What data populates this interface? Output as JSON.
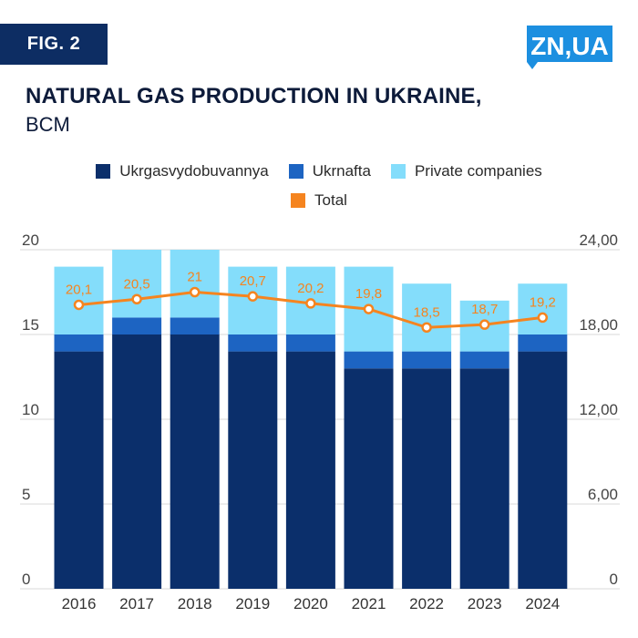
{
  "header": {
    "fig_label": "FIG. 2",
    "logo_text": "ZN,UA"
  },
  "colors": {
    "ukrgas": "#0b2f6b",
    "ukrnafta": "#1d64c2",
    "private": "#84ddfb",
    "total": "#f5841f",
    "logo_bg": "#ffffff",
    "logo_fill": "#1c8fe0"
  },
  "chart_data": {
    "type": "bar",
    "stacked": true,
    "title": "NATURAL GAS PRODUCTION IN UKRAINE,",
    "subtitle": "BCM",
    "categories": [
      "2016",
      "2017",
      "2018",
      "2019",
      "2020",
      "2021",
      "2022",
      "2023",
      "2024"
    ],
    "series": [
      {
        "name": "Ukrgasvydobuvannya",
        "values": [
          14,
          15,
          15,
          14,
          14,
          13,
          13,
          13,
          14
        ]
      },
      {
        "name": "Ukrnafta",
        "values": [
          1,
          1,
          1,
          1,
          1,
          1,
          1,
          1,
          1
        ]
      },
      {
        "name": "Private companies",
        "values": [
          4,
          4,
          4,
          4,
          4,
          5,
          4,
          3,
          3
        ]
      }
    ],
    "line_series": {
      "name": "Total",
      "values": [
        20.1,
        20.5,
        21,
        20.7,
        20.2,
        19.8,
        18.5,
        18.7,
        19.2
      ],
      "labels": [
        "20,1",
        "20,5",
        "21",
        "20,7",
        "20,2",
        "19,8",
        "18,5",
        "18,7",
        "19,2"
      ],
      "axis": "right"
    },
    "y_left": {
      "range": [
        0,
        20
      ],
      "ticks": [
        "0",
        "5",
        "10",
        "15",
        "20"
      ],
      "tick_values": [
        0,
        5,
        10,
        15,
        20
      ]
    },
    "y_right": {
      "range": [
        0,
        24
      ],
      "ticks": [
        "0",
        "6,00",
        "12,00",
        "18,00",
        "24,00"
      ],
      "tick_values": [
        0,
        6,
        12,
        18,
        24
      ]
    },
    "grid": true,
    "legend_position": "top"
  }
}
